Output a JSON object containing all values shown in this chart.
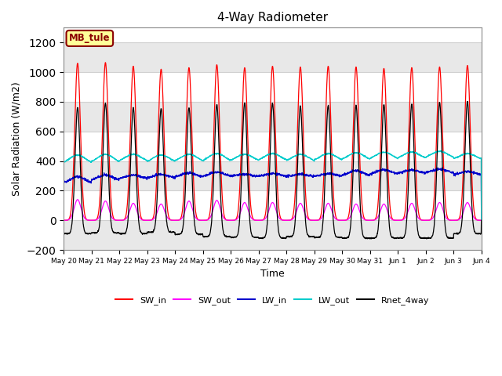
{
  "title": "4-Way Radiometer",
  "xlabel": "Time",
  "ylabel": "Solar Radiation (W/m2)",
  "station_label": "MB_tule",
  "ylim": [
    -200,
    1300
  ],
  "yticks": [
    -200,
    0,
    200,
    400,
    600,
    800,
    1000,
    1200
  ],
  "x_tick_labels": [
    "May 20",
    "May 21",
    "May 22",
    "May 23",
    "May 24",
    "May 25",
    "May 26",
    "May 27",
    "May 28",
    "May 29",
    "May 30",
    "May 31",
    "Jun 1",
    "Jun 2",
    "Jun 3",
    "Jun 4"
  ],
  "colors": {
    "SW_in": "#ff0000",
    "SW_out": "#ff00ff",
    "LW_in": "#0000cc",
    "LW_out": "#00cccc",
    "Rnet_4way": "#000000"
  },
  "n_days": 15,
  "SW_in_peak": [
    1060,
    1065,
    1040,
    1020,
    1030,
    1050,
    1030,
    1040,
    1035,
    1040,
    1035,
    1025,
    1030,
    1035,
    1045
  ],
  "SW_out_peak": [
    140,
    130,
    115,
    110,
    130,
    135,
    120,
    120,
    115,
    115,
    110,
    110,
    115,
    120,
    120
  ],
  "LW_in_base": [
    250,
    270,
    280,
    285,
    290,
    295,
    295,
    295,
    295,
    295,
    300,
    310,
    315,
    320,
    305
  ],
  "LW_in_day": [
    295,
    305,
    305,
    310,
    320,
    325,
    310,
    315,
    310,
    315,
    335,
    340,
    340,
    345,
    330
  ],
  "LW_out_base": [
    375,
    380,
    390,
    385,
    390,
    390,
    395,
    395,
    390,
    395,
    400,
    405,
    410,
    415,
    405
  ],
  "LW_out_day": [
    440,
    445,
    445,
    440,
    445,
    450,
    445,
    450,
    445,
    450,
    455,
    460,
    460,
    465,
    450
  ],
  "Rnet_peak": [
    760,
    790,
    760,
    755,
    760,
    780,
    795,
    790,
    770,
    775,
    775,
    780,
    785,
    795,
    800
  ],
  "Rnet_night": [
    -90,
    -85,
    -90,
    -80,
    -95,
    -110,
    -115,
    -120,
    -110,
    -115,
    -120,
    -120,
    -120,
    -120,
    -90
  ],
  "figsize": [
    6.4,
    4.8
  ],
  "dpi": 100
}
